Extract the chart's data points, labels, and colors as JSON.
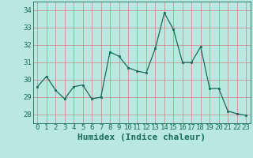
{
  "x": [
    0,
    1,
    2,
    3,
    4,
    5,
    6,
    7,
    8,
    9,
    10,
    11,
    12,
    13,
    14,
    15,
    16,
    17,
    18,
    19,
    20,
    21,
    22,
    23
  ],
  "y": [
    29.6,
    30.2,
    29.4,
    28.9,
    29.6,
    29.7,
    28.9,
    29.0,
    31.6,
    31.35,
    30.7,
    30.5,
    30.4,
    31.8,
    33.85,
    32.9,
    31.0,
    31.0,
    31.9,
    29.5,
    29.5,
    28.2,
    28.05,
    27.95
  ],
  "line_color": "#1a6b5a",
  "marker_color": "#1a6b5a",
  "bg_color": "#b8e8e0",
  "grid_color": "#d08080",
  "xlabel": "Humidex (Indice chaleur)",
  "ylim": [
    27.5,
    34.5
  ],
  "xlim": [
    -0.5,
    23.5
  ],
  "yticks": [
    28,
    29,
    30,
    31,
    32,
    33,
    34
  ],
  "xticks": [
    0,
    1,
    2,
    3,
    4,
    5,
    6,
    7,
    8,
    9,
    10,
    11,
    12,
    13,
    14,
    15,
    16,
    17,
    18,
    19,
    20,
    21,
    22,
    23
  ],
  "tick_color": "#1a6b5a",
  "label_fontsize": 8,
  "tick_fontsize": 6.5
}
